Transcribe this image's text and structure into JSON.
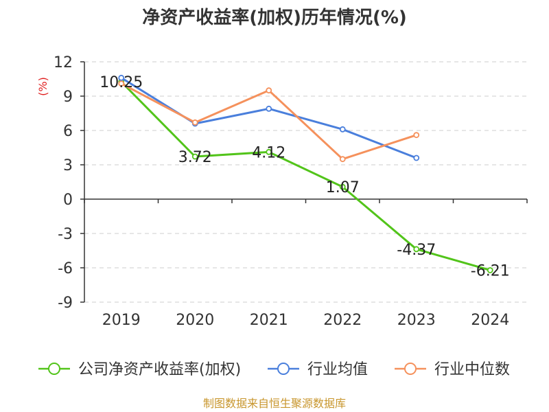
{
  "chart_data": {
    "type": "line",
    "title": "净资产收益率(加权)历年情况(%)",
    "ylabel": "(%)",
    "xlabel": "",
    "categories": [
      "2019",
      "2020",
      "2021",
      "2022",
      "2023",
      "2024"
    ],
    "ylim": [
      -9,
      12
    ],
    "yticks": [
      12,
      9,
      6,
      3,
      0,
      -3,
      -6,
      -9
    ],
    "grid": true,
    "legend_position": "bottom",
    "series": [
      {
        "name": "公司净资产收益率(加权)",
        "color": "#52c41a",
        "values": [
          10.25,
          3.72,
          4.12,
          1.07,
          -4.37,
          -6.21
        ],
        "data_labels": [
          "10.25",
          "3.72",
          "4.12",
          "1.07",
          "-4.37",
          "-6.21"
        ]
      },
      {
        "name": "行业均值",
        "color": "#4a7fdc",
        "values": [
          10.6,
          6.6,
          7.9,
          6.1,
          3.6,
          null
        ]
      },
      {
        "name": "行业中位数",
        "color": "#f5915c",
        "values": [
          10.1,
          6.7,
          9.5,
          3.5,
          5.6,
          null
        ]
      }
    ]
  },
  "source_text": "制图数据来自恒生聚源数据库",
  "colors": {
    "axis": "#333333",
    "grid": "#cccccc",
    "ylabel": "#e02020",
    "source": "#c8962d"
  }
}
